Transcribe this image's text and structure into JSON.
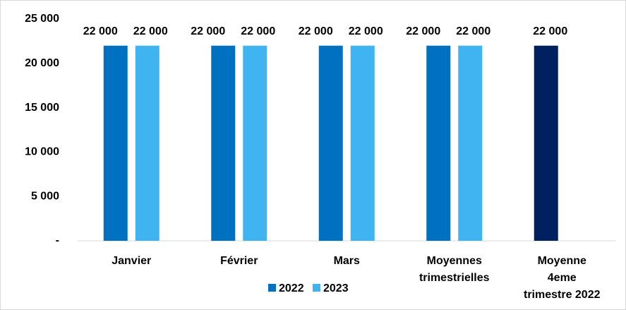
{
  "chart_data": {
    "type": "bar",
    "categories": [
      "Janvier",
      "Février",
      "Mars",
      "Moyennes\ntrimestrielles",
      "Moyenne\n4eme\ntrimestre 2022"
    ],
    "series": [
      {
        "name": "2022",
        "color": "#0070c0",
        "colors": [
          "#0070c0",
          "#0070c0",
          "#0070c0",
          "#0070c0",
          "#002060"
        ],
        "values": [
          22000,
          22000,
          22000,
          22000,
          22000
        ],
        "value_labels": [
          "22 000",
          "22 000",
          "22 000",
          "22 000",
          "22 000"
        ]
      },
      {
        "name": "2023",
        "color": "#3fb4f0",
        "values": [
          22000,
          22000,
          22000,
          22000,
          null
        ],
        "value_labels": [
          "22 000",
          "22 000",
          "22 000",
          "22 000",
          null
        ]
      }
    ],
    "ylim": [
      0,
      25000
    ],
    "yticks": [
      {
        "value": 0,
        "label": "-"
      },
      {
        "value": 5000,
        "label": "5 000"
      },
      {
        "value": 10000,
        "label": "10 000"
      },
      {
        "value": 15000,
        "label": "15 000"
      },
      {
        "value": 20000,
        "label": "20 000"
      },
      {
        "value": 25000,
        "label": "25 000"
      }
    ],
    "grid": false,
    "legend": "bottom"
  }
}
